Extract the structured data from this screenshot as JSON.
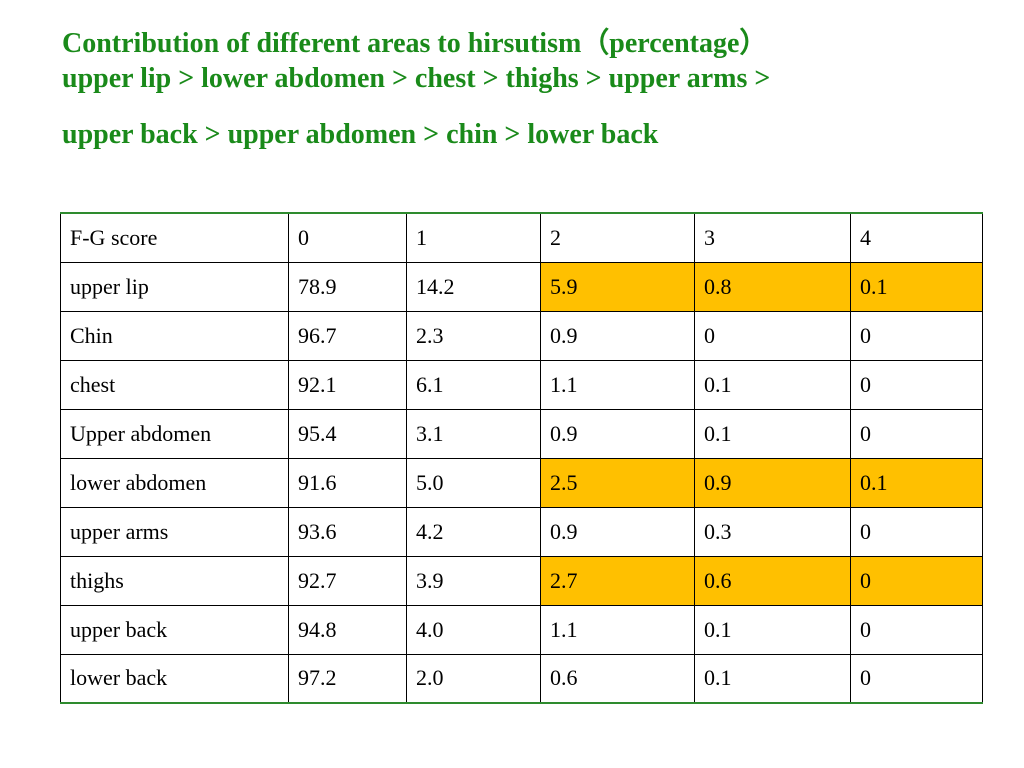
{
  "title": {
    "line1": "Contribution of different areas to hirsutism（percentage）",
    "line2": "upper lip > lower abdomen > chest > thighs > upper arms >",
    "line3": "upper back > upper abdomen > chin > lower back"
  },
  "colors": {
    "title": "#1a8a1a",
    "highlight": "#ffc000",
    "table_rule": "#2e8b2e"
  },
  "table": {
    "header": [
      "F-G score",
      "0",
      "1",
      "2",
      "3",
      "4"
    ],
    "rows": [
      {
        "cells": [
          "upper lip",
          "78.9",
          "14.2",
          "5.9",
          "0.8",
          "0.1"
        ],
        "highlighted": true
      },
      {
        "cells": [
          "Chin",
          "96.7",
          "2.3",
          "0.9",
          "0",
          "0"
        ],
        "highlighted": false
      },
      {
        "cells": [
          "chest",
          "92.1",
          "6.1",
          "1.1",
          "0.1",
          "0"
        ],
        "highlighted": false
      },
      {
        "cells": [
          "Upper abdomen",
          "95.4",
          "3.1",
          "0.9",
          "0.1",
          "0"
        ],
        "highlighted": false
      },
      {
        "cells": [
          "lower abdomen",
          "91.6",
          "5.0",
          "2.5",
          "0.9",
          "0.1"
        ],
        "highlighted": true
      },
      {
        "cells": [
          "upper arms",
          "93.6",
          "4.2",
          "0.9",
          "0.3",
          "0"
        ],
        "highlighted": false
      },
      {
        "cells": [
          "thighs",
          "92.7",
          "3.9",
          "2.7",
          "0.6",
          "0"
        ],
        "highlighted": true
      },
      {
        "cells": [
          "upper back",
          "94.8",
          "4.0",
          "1.1",
          "0.1",
          "0"
        ],
        "highlighted": false
      },
      {
        "cells": [
          "lower back",
          "97.2",
          "2.0",
          "0.6",
          "0.1",
          "0"
        ],
        "highlighted": false
      }
    ]
  }
}
